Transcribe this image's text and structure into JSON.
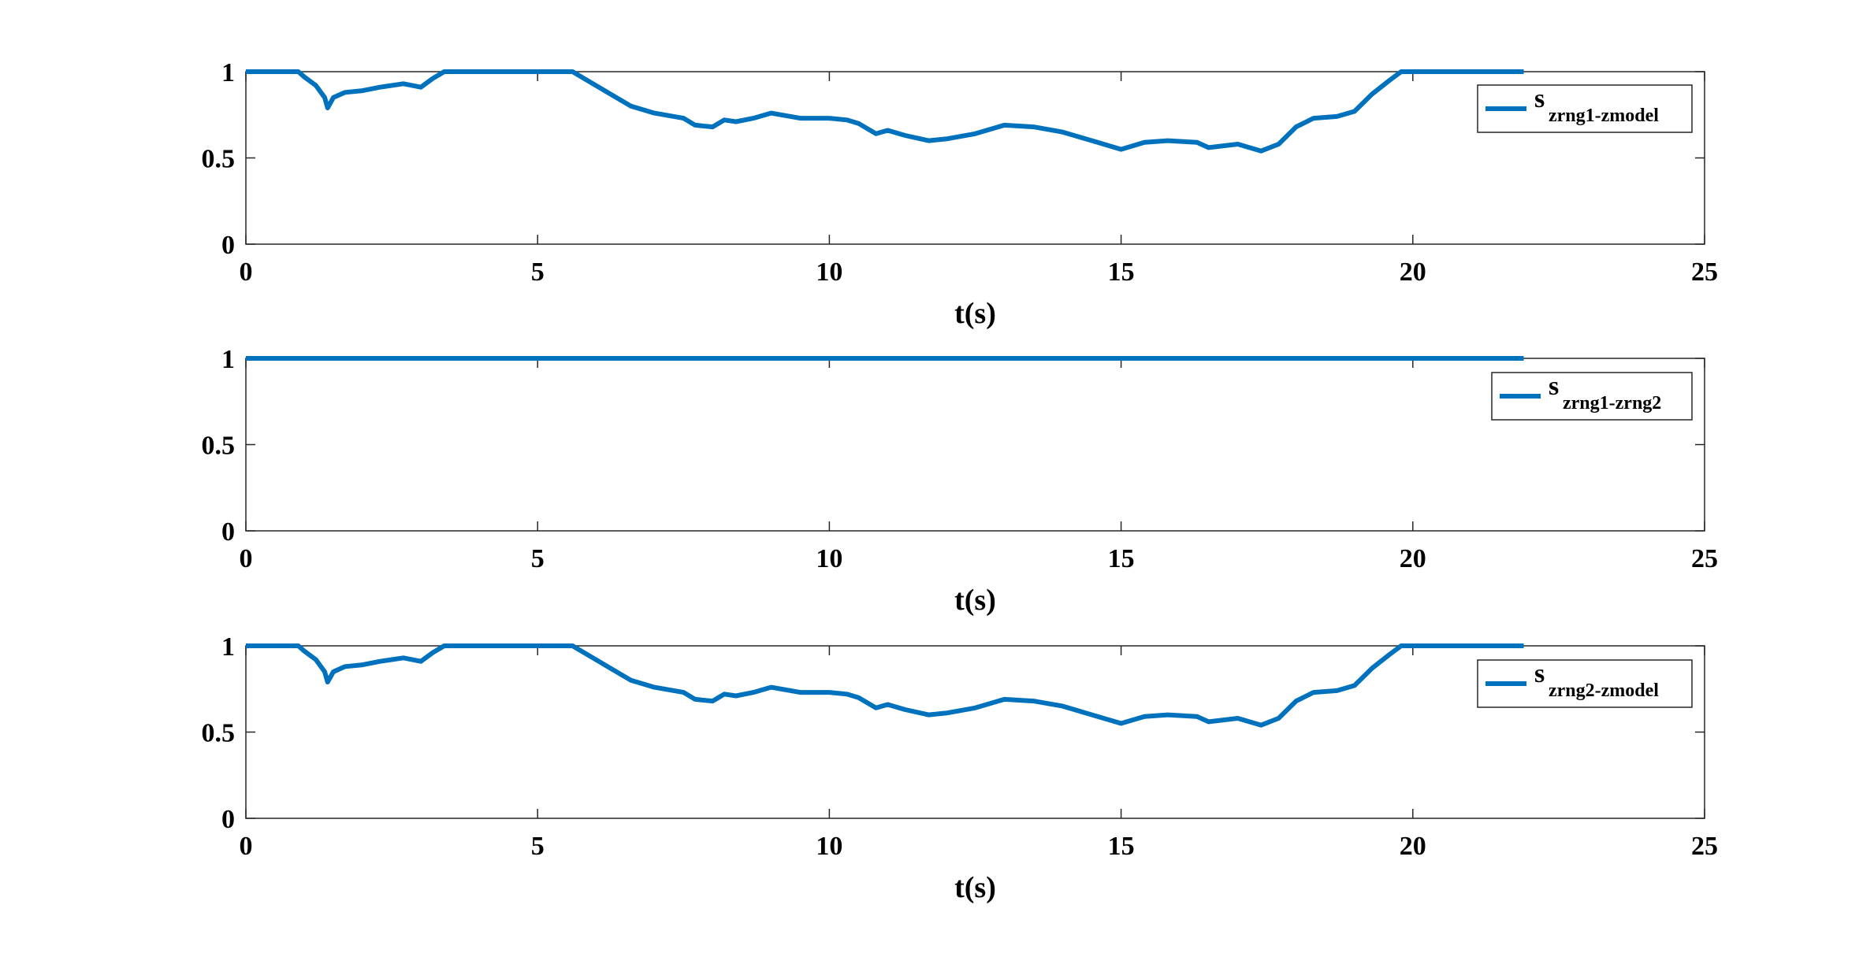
{
  "colors": {
    "series": "#0072BD"
  },
  "chart_data": [
    {
      "type": "line",
      "xlabel": "t(s)",
      "ylabel": "",
      "xlim": [
        0,
        25
      ],
      "ylim": [
        0,
        1
      ],
      "xticks": [
        "0",
        "5",
        "10",
        "15",
        "20",
        "25"
      ],
      "yticks": [
        "0",
        "0.5",
        "1"
      ],
      "legend_position": "top-right",
      "series": [
        {
          "name_main": "s",
          "name_sub": "zrng1-zmodel",
          "x": [
            0,
            0.9,
            1.0,
            1.2,
            1.35,
            1.4,
            1.5,
            1.7,
            2.0,
            2.3,
            2.5,
            2.7,
            3.0,
            3.2,
            3.4,
            5.6,
            5.8,
            6.2,
            6.6,
            7.0,
            7.5,
            7.7,
            8.0,
            8.2,
            8.4,
            8.7,
            9.0,
            9.5,
            10.0,
            10.3,
            10.5,
            10.8,
            11.0,
            11.3,
            11.7,
            12.0,
            12.5,
            13.0,
            13.5,
            14.0,
            14.5,
            15.0,
            15.4,
            15.8,
            16.3,
            16.5,
            17.0,
            17.4,
            17.7,
            18.0,
            18.3,
            18.7,
            19.0,
            19.3,
            19.6,
            19.8,
            20.5,
            21.9
          ],
          "y": [
            1.0,
            1.0,
            0.97,
            0.92,
            0.85,
            0.79,
            0.85,
            0.88,
            0.89,
            0.91,
            0.92,
            0.93,
            0.91,
            0.96,
            1.0,
            1.0,
            0.96,
            0.88,
            0.8,
            0.76,
            0.73,
            0.69,
            0.68,
            0.72,
            0.71,
            0.73,
            0.76,
            0.73,
            0.73,
            0.72,
            0.7,
            0.64,
            0.66,
            0.63,
            0.6,
            0.61,
            0.64,
            0.69,
            0.68,
            0.65,
            0.6,
            0.55,
            0.59,
            0.6,
            0.59,
            0.56,
            0.58,
            0.54,
            0.58,
            0.68,
            0.73,
            0.74,
            0.77,
            0.87,
            0.95,
            1.0,
            1.0,
            1.0
          ]
        }
      ]
    },
    {
      "type": "line",
      "xlabel": "t(s)",
      "ylabel": "",
      "xlim": [
        0,
        25
      ],
      "ylim": [
        0,
        1
      ],
      "xticks": [
        "0",
        "5",
        "10",
        "15",
        "20",
        "25"
      ],
      "yticks": [
        "0",
        "0.5",
        "1"
      ],
      "legend_position": "top-right",
      "series": [
        {
          "name_main": "s",
          "name_sub": "zrng1-zrng2",
          "x": [
            0,
            21.9
          ],
          "y": [
            1.0,
            1.0
          ]
        }
      ]
    },
    {
      "type": "line",
      "xlabel": "t(s)",
      "ylabel": "",
      "xlim": [
        0,
        25
      ],
      "ylim": [
        0,
        1
      ],
      "xticks": [
        "0",
        "5",
        "10",
        "15",
        "20",
        "25"
      ],
      "yticks": [
        "0",
        "0.5",
        "1"
      ],
      "legend_position": "top-right",
      "series": [
        {
          "name_main": "s",
          "name_sub": "zrng2-zmodel",
          "x": [
            0,
            0.9,
            1.0,
            1.2,
            1.35,
            1.4,
            1.5,
            1.7,
            2.0,
            2.3,
            2.5,
            2.7,
            3.0,
            3.2,
            3.4,
            5.6,
            5.8,
            6.2,
            6.6,
            7.0,
            7.5,
            7.7,
            8.0,
            8.2,
            8.4,
            8.7,
            9.0,
            9.5,
            10.0,
            10.3,
            10.5,
            10.8,
            11.0,
            11.3,
            11.7,
            12.0,
            12.5,
            13.0,
            13.5,
            14.0,
            14.5,
            15.0,
            15.4,
            15.8,
            16.3,
            16.5,
            17.0,
            17.4,
            17.7,
            18.0,
            18.3,
            18.7,
            19.0,
            19.3,
            19.6,
            19.8,
            20.5,
            21.9
          ],
          "y": [
            1.0,
            1.0,
            0.97,
            0.92,
            0.85,
            0.79,
            0.85,
            0.88,
            0.89,
            0.91,
            0.92,
            0.93,
            0.91,
            0.96,
            1.0,
            1.0,
            0.96,
            0.88,
            0.8,
            0.76,
            0.73,
            0.69,
            0.68,
            0.72,
            0.71,
            0.73,
            0.76,
            0.73,
            0.73,
            0.72,
            0.7,
            0.64,
            0.66,
            0.63,
            0.6,
            0.61,
            0.64,
            0.69,
            0.68,
            0.65,
            0.6,
            0.55,
            0.59,
            0.6,
            0.59,
            0.56,
            0.58,
            0.54,
            0.58,
            0.68,
            0.73,
            0.74,
            0.77,
            0.87,
            0.95,
            1.0,
            1.0,
            1.0
          ]
        }
      ]
    }
  ]
}
